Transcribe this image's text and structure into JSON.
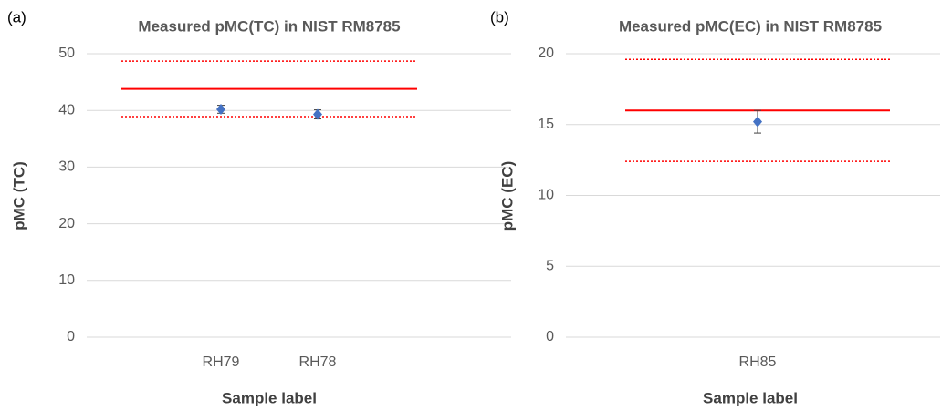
{
  "chart_data": [
    {
      "type": "scatter",
      "panel_label": "(a)",
      "title": "Measured pMC(TC) in NIST RM8785",
      "xlabel": "Sample label",
      "ylabel": "pMC (TC)",
      "categories": [
        "RH79",
        "RH78"
      ],
      "values": [
        40.2,
        39.3
      ],
      "errors": [
        0.7,
        0.8
      ],
      "color": "#4472c4",
      "ylim": [
        0,
        50
      ],
      "yticks": [
        0,
        10,
        20,
        30,
        40,
        50
      ],
      "grid": true,
      "hlines": [
        {
          "value": 43.8,
          "color": "#ff0000",
          "dashed": false
        },
        {
          "value": 48.7,
          "color": "#ff0000",
          "dashed": true
        },
        {
          "value": 38.9,
          "color": "#ff0000",
          "dashed": true
        }
      ]
    },
    {
      "type": "scatter",
      "panel_label": "(b)",
      "title": "Measured pMC(EC) in NIST RM8785",
      "xlabel": "Sample label",
      "ylabel": "pMC (EC)",
      "categories": [
        "RH85"
      ],
      "values": [
        15.2
      ],
      "errors": [
        0.8
      ],
      "color": "#4472c4",
      "ylim": [
        0,
        20
      ],
      "yticks": [
        0,
        5,
        10,
        15,
        20
      ],
      "grid": true,
      "hlines": [
        {
          "value": 16.0,
          "color": "#ff0000",
          "dashed": false
        },
        {
          "value": 19.6,
          "color": "#ff0000",
          "dashed": true
        },
        {
          "value": 12.4,
          "color": "#ff0000",
          "dashed": true
        }
      ]
    }
  ]
}
